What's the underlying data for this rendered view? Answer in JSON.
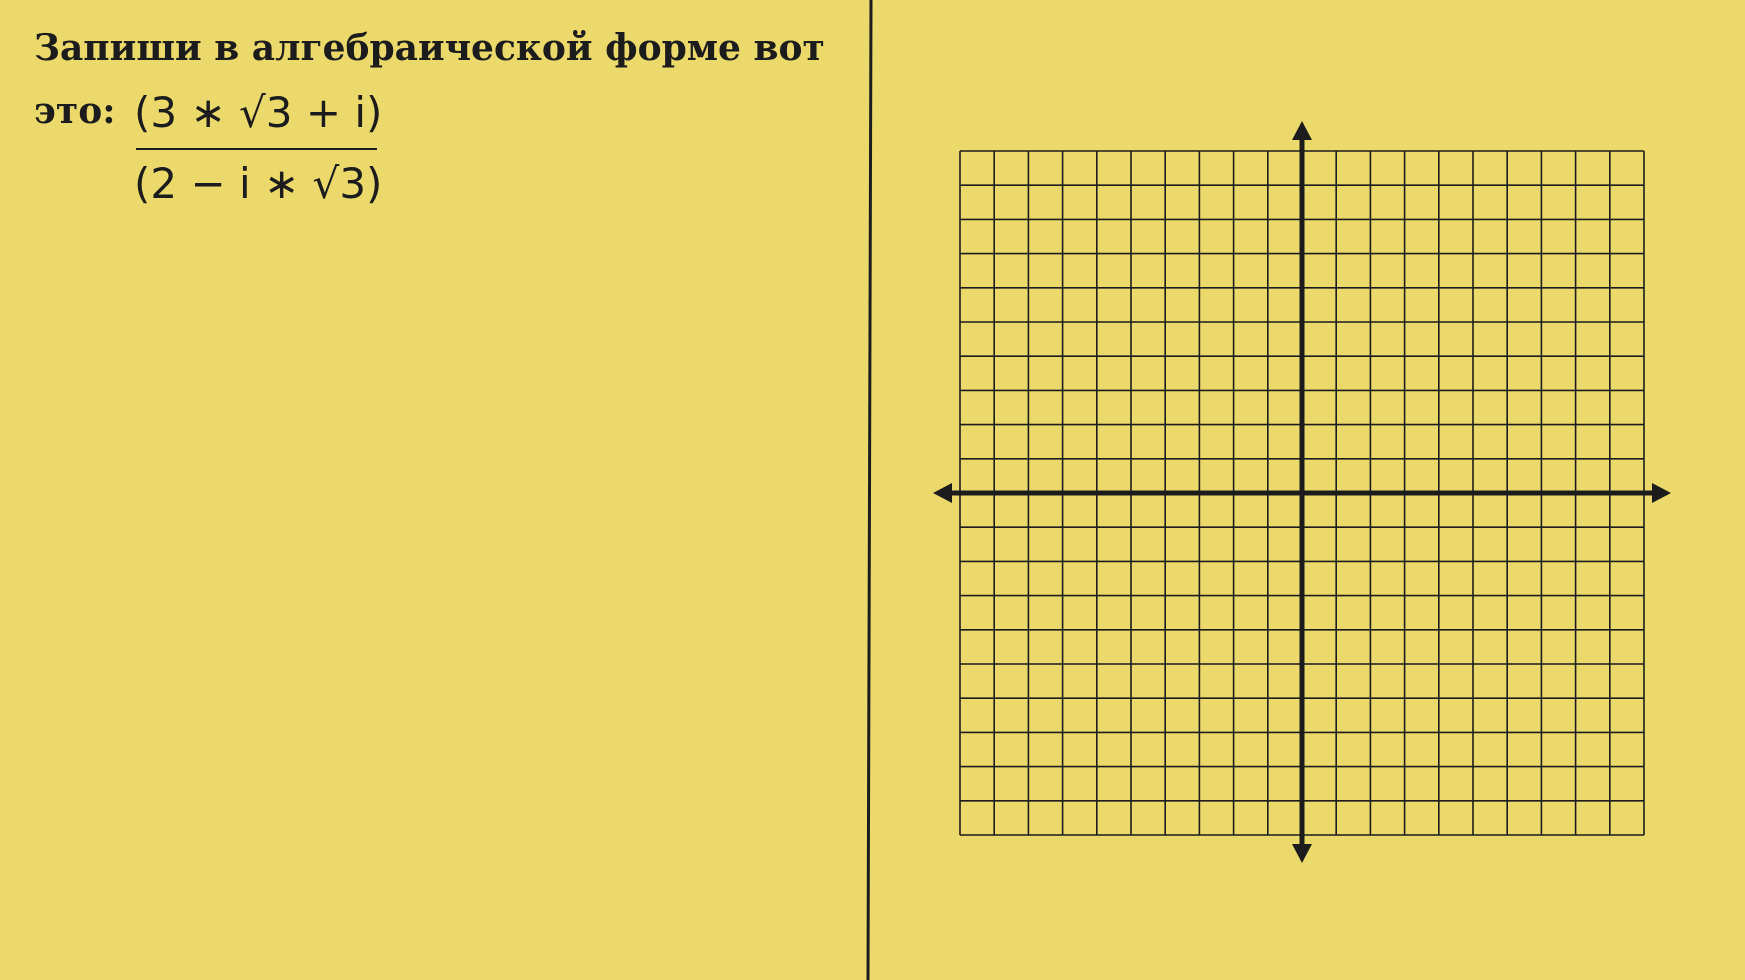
{
  "colors": {
    "background": "#ecd96b",
    "ink": "#1c1c1c"
  },
  "prompt": {
    "line1": "Запиши в алгебраической форме вот",
    "line2": "это:"
  },
  "expression": {
    "numerator": "(3 ∗ √3 + i)",
    "denominator": "(2 − i ∗ √3)"
  },
  "graph": {
    "type": "coordinate-grid",
    "grid_cells_per_side": 20,
    "axes": "x and y with arrowheads"
  }
}
